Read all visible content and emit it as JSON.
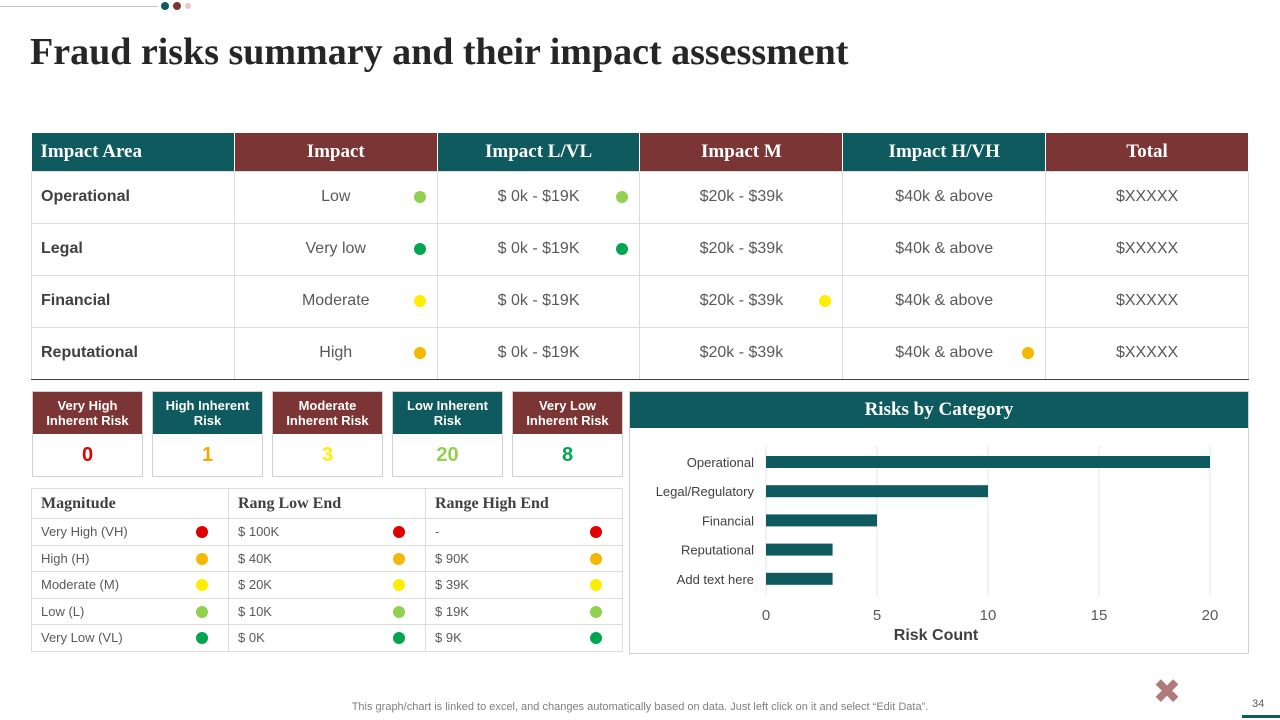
{
  "title": "Fraud risks summary and their impact assessment",
  "colors": {
    "teal": "#0f5a5e",
    "maroon": "#7b3535",
    "dot_light_green": "#92d050",
    "dot_green": "#00a550",
    "dot_yellow": "#ffee00",
    "dot_orange": "#f5b800",
    "dot_red": "#e00000"
  },
  "impact_table": {
    "headers": [
      "Impact Area",
      "Impact",
      "Impact L/VL",
      "Impact M",
      "Impact H/VH",
      "Total"
    ],
    "rows": [
      {
        "area": "Operational",
        "impact": "Low",
        "lvl": "$ 0k - $19K",
        "m": "$20k - $39k",
        "hvh": "$40k & above",
        "total": "$XXXXX"
      },
      {
        "area": "Legal",
        "impact": "Very low",
        "lvl": "$ 0k - $19K",
        "m": "$20k - $39k",
        "hvh": "$40k & above",
        "total": "$XXXXX"
      },
      {
        "area": "Financial",
        "impact": "Moderate",
        "lvl": "$ 0k - $19K",
        "m": "$20k - $39k",
        "hvh": "$40k & above",
        "total": "$XXXXX"
      },
      {
        "area": "Reputational",
        "impact": "High",
        "lvl": "$ 0k - $19K",
        "m": "$20k - $39k",
        "hvh": "$40k & above",
        "total": "$XXXXX"
      }
    ]
  },
  "risk_boxes": [
    {
      "label": "Very High Inherent Risk",
      "value": "0",
      "value_color": "#e00000"
    },
    {
      "label": "High Inherent Risk",
      "value": "1",
      "value_color": "#f5a800"
    },
    {
      "label": "Moderate Inherent Risk",
      "value": "3",
      "value_color": "#ffee00"
    },
    {
      "label": "Low Inherent Risk",
      "value": "20",
      "value_color": "#92d050"
    },
    {
      "label": "Very Low Inherent Risk",
      "value": "8",
      "value_color": "#00a550"
    }
  ],
  "magnitude_table": {
    "headers": [
      "Magnitude",
      "Rang Low End",
      "Range High End"
    ],
    "rows": [
      {
        "magnitude": "Very High (VH)",
        "low": "$ 100K",
        "high": "-"
      },
      {
        "magnitude": "High (H)",
        "low": "$ 40K",
        "high": "$ 90K"
      },
      {
        "magnitude": "Moderate (M)",
        "low": "$ 20K",
        "high": "$ 39K"
      },
      {
        "magnitude": "Low (L)",
        "low": "$ 10K",
        "high": "$ 19K"
      },
      {
        "magnitude": "Very Low (VL)",
        "low": "$ 0K",
        "high": "$ 9K"
      }
    ]
  },
  "chart_data": {
    "type": "bar",
    "orientation": "horizontal",
    "title": "Risks by Category",
    "categories": [
      "Operational",
      "Legal/Regulatory",
      "Financial",
      "Reputational",
      "Add text here"
    ],
    "values": [
      20,
      10,
      5,
      3,
      3
    ],
    "xlabel": "Risk Count",
    "ylabel": "",
    "xlim": [
      0,
      20
    ],
    "xticks": [
      "0",
      "5",
      "10",
      "15",
      "20"
    ],
    "grid": true
  },
  "footer_note": "This graph/chart is linked to excel,  and changes automatically based on data. Just left click on it and select “Edit Data”.",
  "page_number": "34"
}
